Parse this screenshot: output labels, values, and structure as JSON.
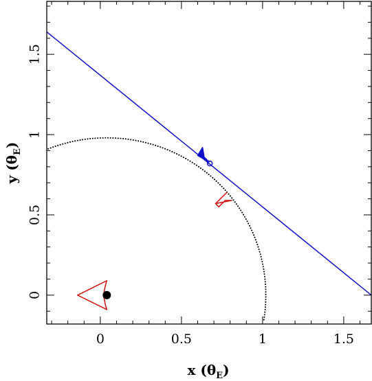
{
  "chart_data": {
    "type": "line",
    "xlabel": "x",
    "xlabel_unit": "θ",
    "xlabel_unit_sub": "E",
    "ylabel": "y",
    "ylabel_unit": "θ",
    "ylabel_unit_sub": "E",
    "xlim": [
      -0.33,
      1.67
    ],
    "ylim": [
      -0.18,
      1.83
    ],
    "x_ticks": [
      {
        "value": 0,
        "label": "0"
      },
      {
        "value": 0.5,
        "label": "0.5"
      },
      {
        "value": 1,
        "label": "1"
      },
      {
        "value": 1.5,
        "label": "1.5"
      }
    ],
    "y_ticks": [
      {
        "value": 0,
        "label": "0"
      },
      {
        "value": 0.5,
        "label": "0.5"
      },
      {
        "value": 1,
        "label": "1"
      },
      {
        "value": 1.5,
        "label": "1.5"
      }
    ],
    "minor_tick_step": 0.1,
    "grid": false,
    "trajectory": {
      "color": "#1010c8",
      "points": [
        [
          -0.33,
          1.64
        ],
        [
          1.67,
          0.0
        ]
      ]
    },
    "einstein_ring_arc": {
      "style": "dotted",
      "color": "#000000",
      "center": [
        0.04,
        0.0
      ],
      "radius": 0.98,
      "start_angle_deg": -9,
      "end_angle_deg": 158
    },
    "caustics": [
      {
        "shape": "triangular",
        "color": "#d01010",
        "points": [
          [
            -0.14,
            0.0
          ],
          [
            0.04,
            0.09
          ],
          [
            0.03,
            0.055
          ],
          [
            0.02,
            0.0
          ],
          [
            0.03,
            -0.055
          ],
          [
            0.04,
            -0.09
          ],
          [
            -0.14,
            0.0
          ]
        ]
      },
      {
        "shape": "triangular",
        "color": "#d01010",
        "points": [
          [
            0.71,
            0.57
          ],
          [
            0.78,
            0.64
          ],
          [
            0.75,
            0.61
          ],
          [
            0.71,
            0.57
          ],
          [
            0.81,
            0.59
          ],
          [
            0.77,
            0.59
          ],
          [
            0.73,
            0.55
          ],
          [
            0.71,
            0.57
          ]
        ]
      },
      {
        "shape": "triangular",
        "color": "#1010c8",
        "filled": true,
        "points": [
          [
            0.6,
            0.87
          ],
          [
            0.63,
            0.92
          ],
          [
            0.64,
            0.86
          ],
          [
            0.67,
            0.83
          ],
          [
            0.6,
            0.87
          ]
        ]
      }
    ],
    "markers": [
      {
        "label": "",
        "x": 0.04,
        "y": 0.0,
        "style": "filled-circle",
        "color": "#000000"
      },
      {
        "label": "",
        "x": 0.675,
        "y": 0.82,
        "style": "open-circle",
        "color": "#1010c8"
      }
    ]
  }
}
